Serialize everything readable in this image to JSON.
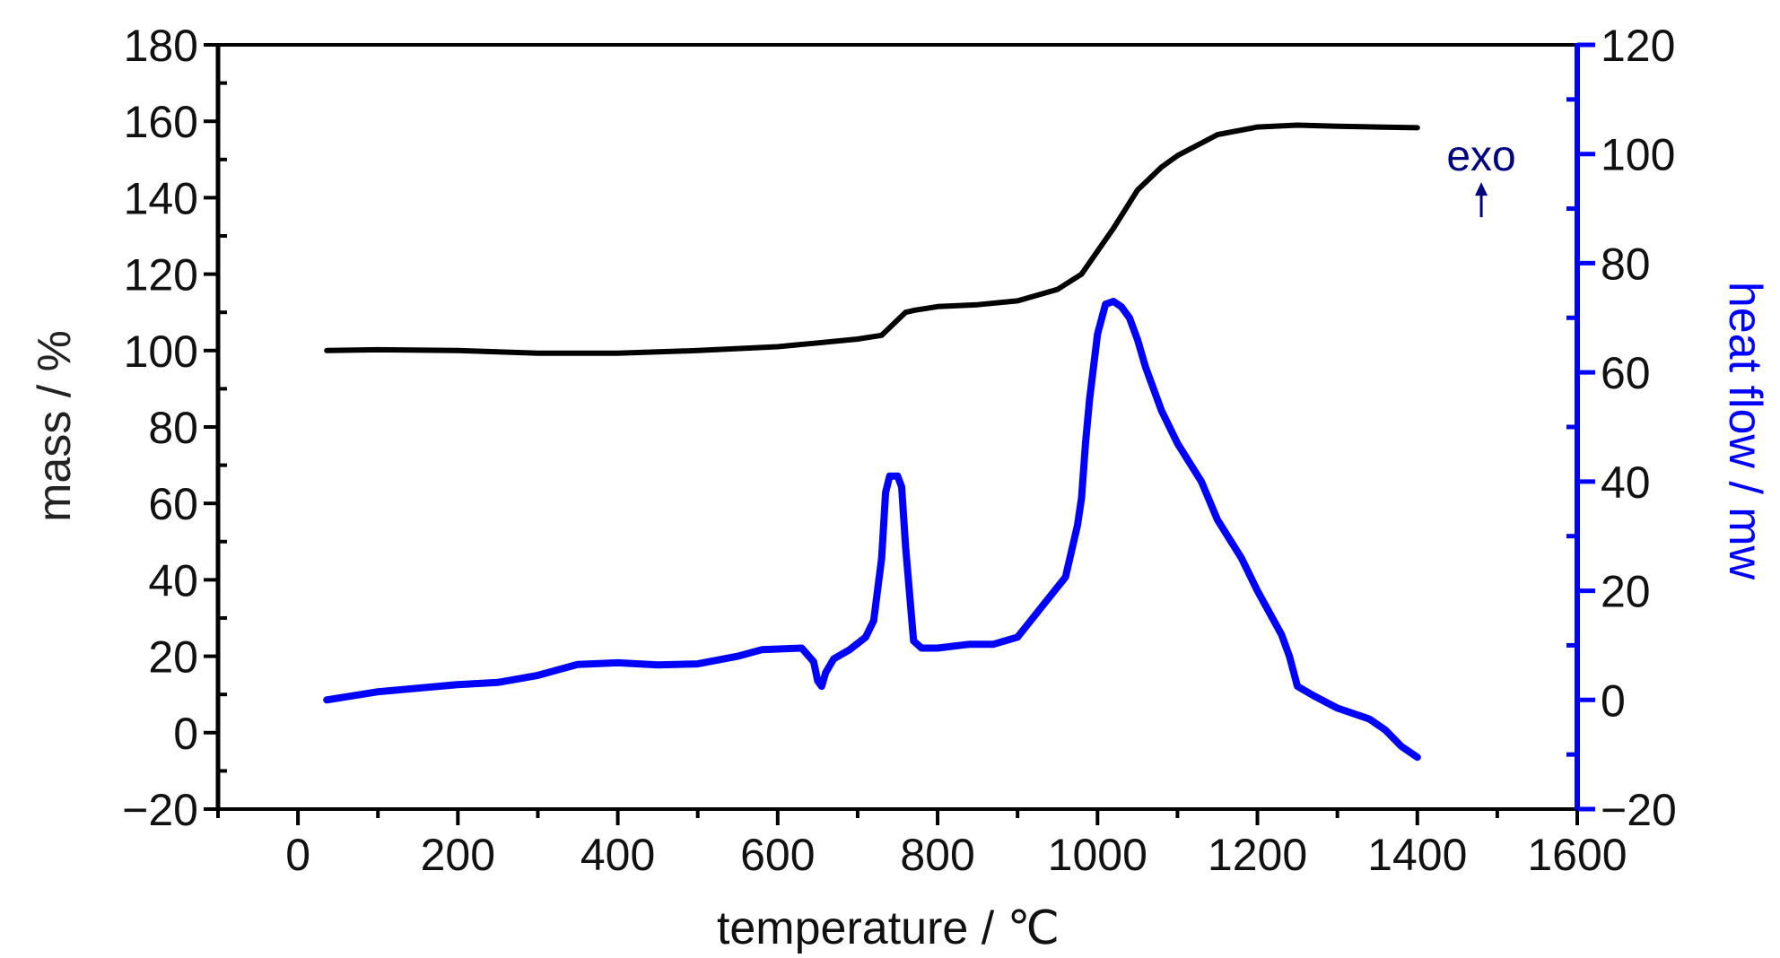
{
  "chart_data": {
    "type": "line",
    "title": "",
    "xlabel": "temperature / ℃",
    "ylabel_left": "mass / %",
    "ylabel_right": "heat flow / mw",
    "xlim": [
      -100,
      1600
    ],
    "ylim_left": [
      -20,
      180
    ],
    "ylim_right": [
      -20,
      120
    ],
    "x_ticks": [
      "0",
      "200",
      "400",
      "600",
      "800",
      "1000",
      "1200",
      "1400",
      "1600"
    ],
    "y_left_ticks": [
      "−20",
      "0",
      "20",
      "40",
      "60",
      "80",
      "100",
      "120",
      "140",
      "160",
      "180"
    ],
    "y_right_ticks": [
      "−20",
      "0",
      "20",
      "40",
      "60",
      "80",
      "100",
      "120"
    ],
    "grid": false,
    "legend": "none",
    "annotation": {
      "text": "exo",
      "arrow": "up",
      "x": 1480,
      "y_right": 95
    },
    "colors": {
      "mass": "#000000",
      "heat_flow": "#0000ff",
      "annotation": "#000080",
      "frame": "#000000"
    },
    "series": [
      {
        "axis": "left",
        "x": [
          36,
          100,
          200,
          300,
          400,
          500,
          600,
          650,
          700,
          730,
          745,
          760,
          770,
          800,
          850,
          900,
          950,
          980,
          1000,
          1020,
          1050,
          1080,
          1100,
          1150,
          1200,
          1250,
          1300,
          1350,
          1400
        ],
        "y": [
          100,
          100.2,
          100,
          99.3,
          99.3,
          100,
          101,
          102,
          103,
          104,
          107,
          110,
          110.5,
          111.5,
          112,
          113,
          116,
          120,
          126,
          132,
          142,
          148,
          151,
          156.5,
          158.5,
          159,
          158.7,
          158.5,
          158.3
        ]
      },
      {
        "axis": "right",
        "x": [
          36,
          100,
          200,
          250,
          300,
          350,
          400,
          450,
          500,
          550,
          580,
          630,
          645,
          650,
          655,
          660,
          670,
          690,
          710,
          720,
          730,
          735,
          740,
          750,
          755,
          760,
          770,
          780,
          800,
          840,
          870,
          900,
          930,
          960,
          975,
          980,
          985,
          990,
          1000,
          1010,
          1020,
          1030,
          1040,
          1050,
          1060,
          1080,
          1100,
          1130,
          1150,
          1180,
          1200,
          1230,
          1240,
          1250,
          1270,
          1300,
          1340,
          1360,
          1380,
          1400
        ],
        "y": [
          0,
          1.5,
          2.8,
          3.2,
          4.5,
          6.5,
          6.8,
          6.4,
          6.6,
          8,
          9.2,
          9.5,
          7,
          3.5,
          2.5,
          5,
          7.5,
          9.2,
          11.5,
          14.5,
          26,
          38,
          41,
          41,
          39,
          28,
          10.8,
          9.5,
          9.5,
          10.2,
          10.2,
          11.5,
          17,
          22.5,
          32,
          37,
          47,
          55,
          67,
          72.5,
          73,
          72,
          70,
          66,
          61,
          53,
          47,
          40,
          33,
          26,
          20,
          12,
          8,
          2.5,
          0.8,
          -1.5,
          -3.5,
          -5.5,
          -8.5,
          -10.5
        ]
      }
    ]
  }
}
